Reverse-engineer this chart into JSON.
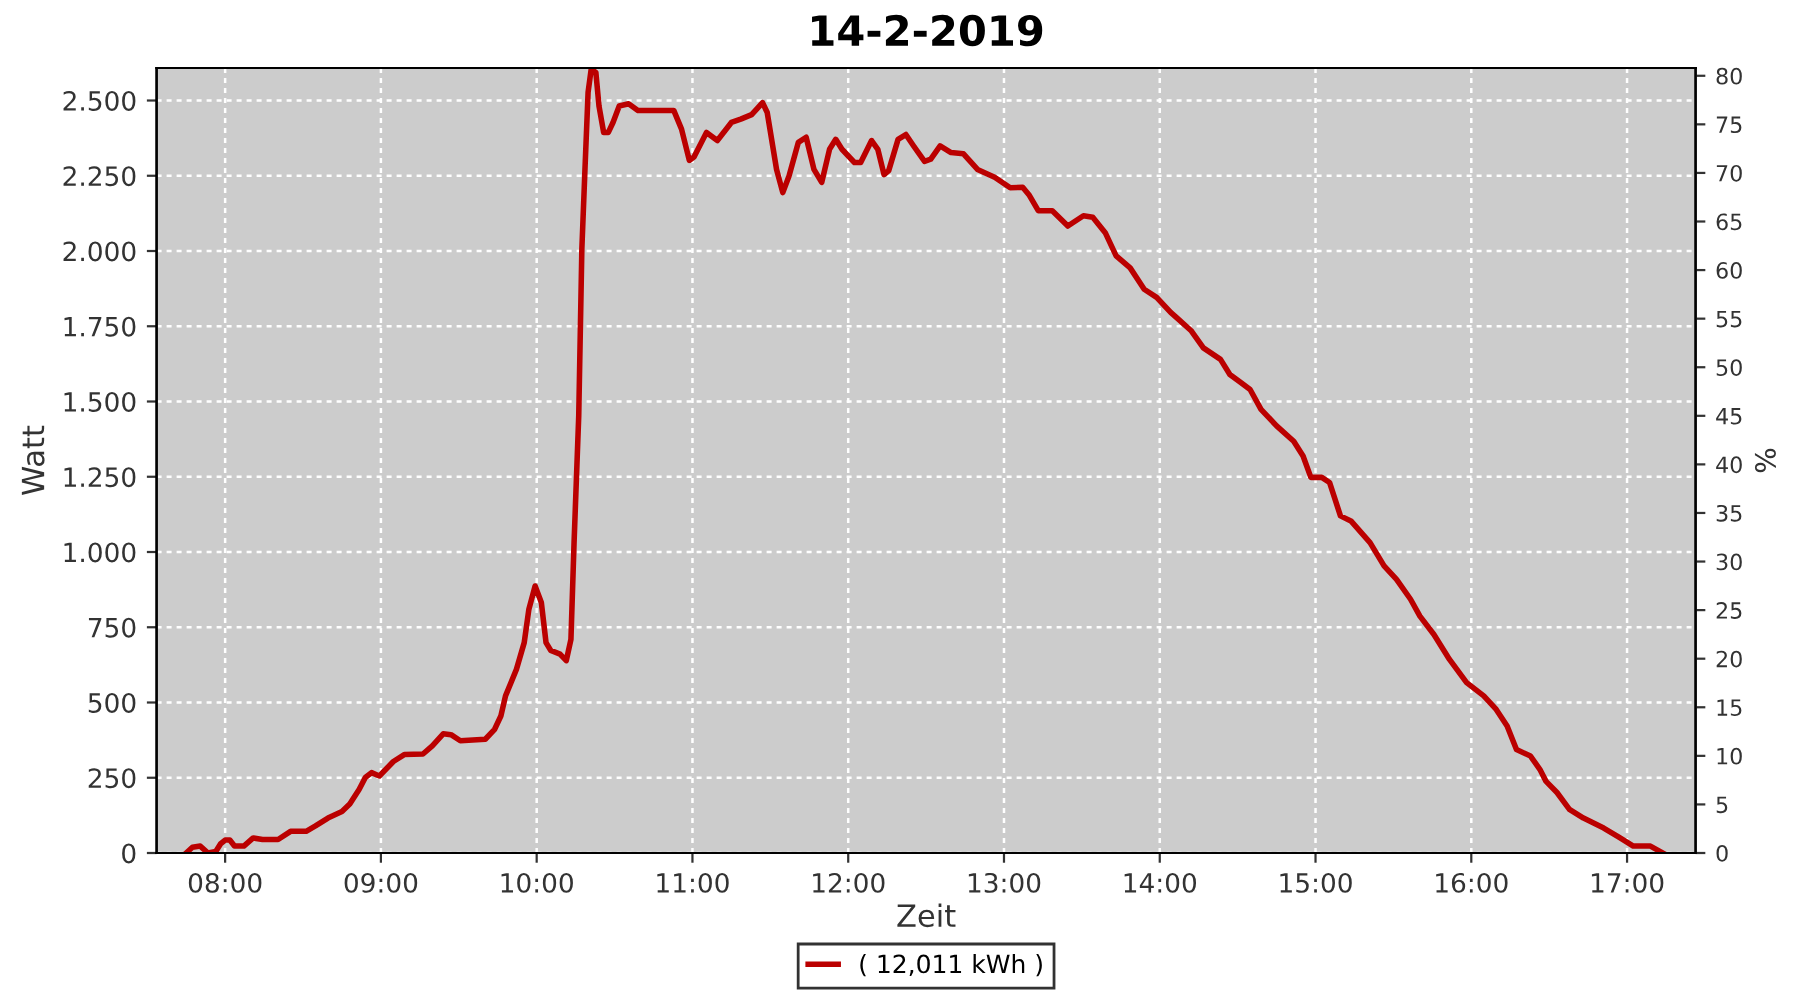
{
  "chart_data": {
    "type": "line",
    "title": "14-2-2019",
    "xlabel": "Zeit",
    "ylabel": "Watt",
    "y2label": "%",
    "xlim": [
      7.56,
      17.44
    ],
    "xticks": [
      {
        "value": 8,
        "label": "08:00"
      },
      {
        "value": 9,
        "label": "09:00"
      },
      {
        "value": 10,
        "label": "10:00"
      },
      {
        "value": 11,
        "label": "11:00"
      },
      {
        "value": 12,
        "label": "12:00"
      },
      {
        "value": 13,
        "label": "13:00"
      },
      {
        "value": 14,
        "label": "14:00"
      },
      {
        "value": 15,
        "label": "15:00"
      },
      {
        "value": 16,
        "label": "16:00"
      },
      {
        "value": 17,
        "label": "17:00"
      }
    ],
    "ylim": [
      0,
      2608
    ],
    "yticks": [
      0,
      250,
      500,
      750,
      {
        "value": 1000,
        "label": "1.000"
      },
      {
        "value": 1250,
        "label": "1.250"
      },
      {
        "value": 1500,
        "label": "1.500"
      },
      {
        "value": 1750,
        "label": "1.750"
      },
      {
        "value": 2000,
        "label": "2.000"
      },
      {
        "value": 2250,
        "label": "2.250"
      },
      {
        "value": 2500,
        "label": "2.500"
      }
    ],
    "y2lim": [
      0,
      80.8
    ],
    "y2ticks": [
      0,
      5,
      10,
      15,
      20,
      25,
      30,
      35,
      40,
      45,
      50,
      55,
      60,
      65,
      70,
      75,
      80
    ],
    "grid": true,
    "legend": "bottom",
    "line_style": "solid",
    "marker": "none",
    "series": [
      {
        "name": "( 12,011 kWh )",
        "color": "#bb0000",
        "x": [
          7.75,
          7.79,
          7.84,
          7.89,
          7.94,
          7.97,
          8.0,
          8.03,
          8.06,
          8.12,
          8.18,
          8.24,
          8.34,
          8.42,
          8.52,
          8.58,
          8.66,
          8.75,
          8.8,
          8.86,
          8.9,
          8.94,
          8.99,
          9.08,
          9.15,
          9.27,
          9.33,
          9.4,
          9.45,
          9.51,
          9.67,
          9.73,
          9.77,
          9.8,
          9.87,
          9.92,
          9.95,
          9.99,
          10.03,
          10.06,
          10.09,
          10.15,
          10.19,
          10.22,
          10.24,
          10.27,
          10.29,
          10.31,
          10.33,
          10.35,
          10.38,
          10.4,
          10.43,
          10.46,
          10.49,
          10.53,
          10.59,
          10.65,
          10.86,
          10.88,
          10.93,
          10.98,
          11.01,
          11.09,
          11.16,
          11.25,
          11.31,
          11.38,
          11.45,
          11.48,
          11.54,
          11.58,
          11.62,
          11.68,
          11.73,
          11.78,
          11.83,
          11.88,
          11.92,
          11.96,
          12.04,
          12.08,
          12.15,
          12.19,
          12.23,
          12.26,
          12.32,
          12.37,
          12.42,
          12.49,
          12.53,
          12.59,
          12.66,
          12.74,
          12.83,
          12.94,
          13.04,
          13.12,
          13.16,
          13.22,
          13.31,
          13.41,
          13.51,
          13.57,
          13.65,
          13.72,
          13.81,
          13.9,
          13.98,
          14.07,
          14.11,
          14.2,
          14.28,
          14.39,
          14.45,
          14.52,
          14.58,
          14.65,
          14.75,
          14.86,
          14.92,
          14.97,
          15.04,
          15.09,
          15.16,
          15.23,
          15.35,
          15.44,
          15.52,
          15.61,
          15.67,
          15.76,
          15.86,
          15.97,
          16.08,
          16.16,
          16.23,
          16.29,
          16.38,
          16.44,
          16.48,
          16.55,
          16.63,
          16.72,
          16.85,
          16.95,
          17.04,
          17.15,
          17.23
        ],
        "values": [
          0,
          19,
          23,
          0,
          5,
          30,
          43,
          43,
          23,
          23,
          50,
          45,
          45,
          72,
          72,
          90,
          116,
          138,
          163,
          211,
          251,
          267,
          256,
          304,
          327,
          329,
          356,
          396,
          393,
          373,
          378,
          411,
          455,
          522,
          610,
          699,
          810,
          887,
          832,
          699,
          673,
          661,
          639,
          710,
          1031,
          1452,
          2006,
          2271,
          2527,
          2604,
          2593,
          2482,
          2394,
          2394,
          2427,
          2482,
          2489,
          2467,
          2467,
          2467,
          2405,
          2301,
          2312,
          2394,
          2367,
          2427,
          2438,
          2453,
          2493,
          2460,
          2271,
          2194,
          2249,
          2361,
          2378,
          2271,
          2228,
          2338,
          2371,
          2338,
          2294,
          2294,
          2367,
          2338,
          2254,
          2267,
          2371,
          2387,
          2349,
          2298,
          2305,
          2349,
          2327,
          2323,
          2271,
          2245,
          2210,
          2212,
          2187,
          2134,
          2134,
          2083,
          2117,
          2112,
          2061,
          1984,
          1944,
          1873,
          1846,
          1796,
          1778,
          1736,
          1678,
          1640,
          1590,
          1563,
          1540,
          1474,
          1419,
          1368,
          1319,
          1248,
          1248,
          1231,
          1120,
          1102,
          1031,
          954,
          909,
          843,
          787,
          726,
          643,
          566,
          522,
          477,
          422,
          344,
          322,
          278,
          238,
          201,
          145,
          116,
          83,
          52,
          23,
          23,
          0
        ]
      }
    ]
  }
}
